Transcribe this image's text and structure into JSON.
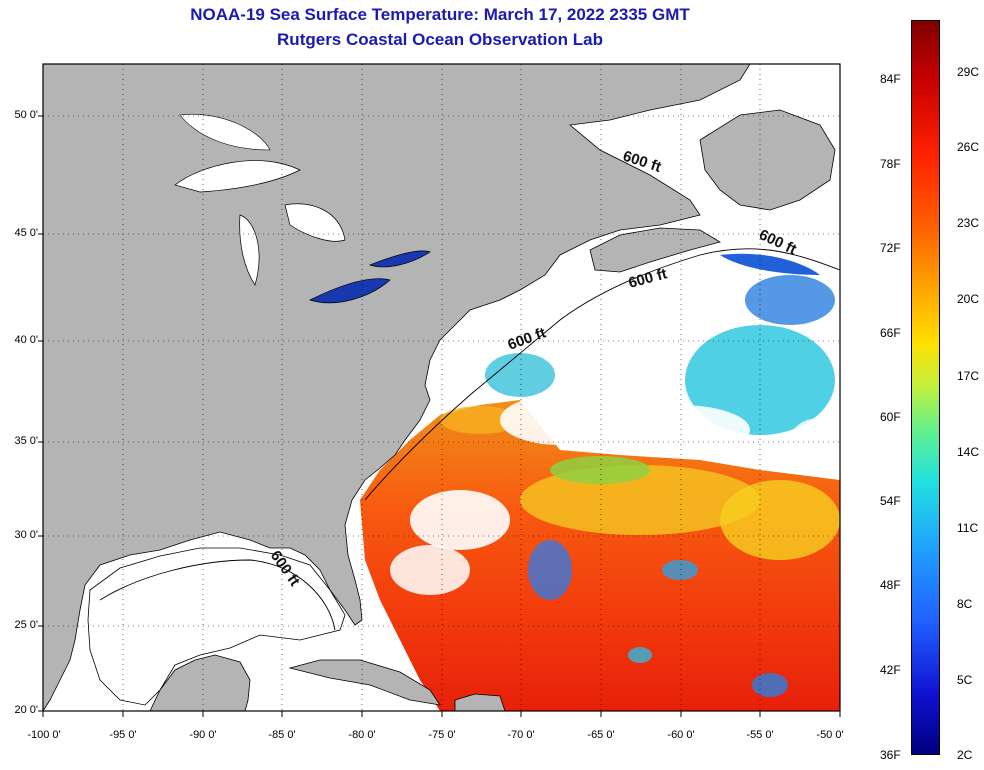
{
  "title": {
    "line1": "NOAA-19 Sea Surface Temperature:  March 17, 2022 2335 GMT",
    "line2": "Rutgers Coastal Ocean Observation Lab"
  },
  "map": {
    "lat_labels": [
      "50 0'",
      "45 0'",
      "40 0'",
      "35 0'",
      "30 0'",
      "25 0'",
      "20 0'"
    ],
    "lon_labels": [
      "-100 0'",
      "-95 0'",
      "-90 0'",
      "-85 0'",
      "-80 0'",
      "-75 0'",
      "-70 0'",
      "-65 0'",
      "-60 0'",
      "-55 0'",
      "-50 0'"
    ],
    "contour_label": "600 ft",
    "land_color": "#b4b4b4",
    "cloud_color": "#ffffff"
  },
  "colorbar": {
    "fahrenheit": [
      "84F",
      "78F",
      "72F",
      "66F",
      "60F",
      "54F",
      "48F",
      "42F",
      "36F"
    ],
    "celsius": [
      "29C",
      "26C",
      "23C",
      "20C",
      "17C",
      "14C",
      "11C",
      "8C",
      "5C",
      "2C"
    ]
  }
}
